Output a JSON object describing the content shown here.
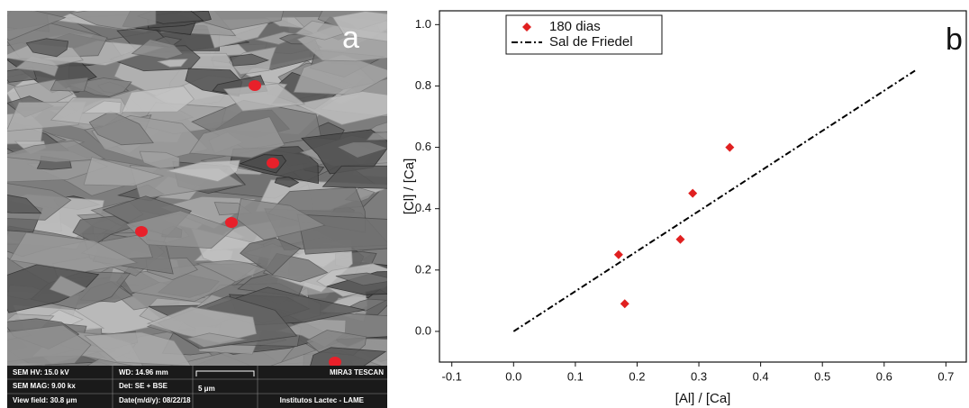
{
  "panel_a": {
    "label": "a",
    "info": {
      "hv": "SEM HV: 15.0 kV",
      "wd": "WD: 14.96 mm",
      "instrument": "MIRA3 TESCAN",
      "mag": "SEM MAG: 9.00 kx",
      "det": "Det: SE + BSE",
      "scale": "5 μm",
      "view_field": "View field: 30.8 μm",
      "date": "Date(m/d/y): 08/22/18",
      "institution": "Institutos Lactec - LAME"
    }
  },
  "chart_data": {
    "type": "scatter",
    "panel_label": "b",
    "x_label": "[Al] / [Ca]",
    "y_label": "[Cl] / [Ca]",
    "xlim": [
      -0.12,
      0.733
    ],
    "ylim": [
      -0.1,
      1.045
    ],
    "xticks": [
      -0.1,
      {
        "value": 0,
        "label": "0.0"
      },
      0.1,
      0.2,
      0.3,
      0.4,
      0.5,
      0.6,
      0.7
    ],
    "yticks": [
      {
        "value": 0,
        "label": "0.0"
      },
      0.2,
      0.4,
      0.6,
      0.8,
      {
        "value": 1,
        "label": "1.0"
      }
    ],
    "legend": "upper left",
    "series": [
      {
        "name": "180 dias",
        "color": "#e02020",
        "marker": "diamond",
        "x": [
          0.17,
          0.18,
          0.27,
          0.29,
          0.35
        ],
        "values": [
          0.25,
          0.09,
          0.3,
          0.45,
          0.6
        ]
      },
      {
        "name": "Sal de Friedel",
        "color": "#000000",
        "type": "line",
        "dash": "dashdot",
        "x": [
          0,
          0.65
        ],
        "values": [
          0,
          0.85
        ]
      }
    ]
  }
}
